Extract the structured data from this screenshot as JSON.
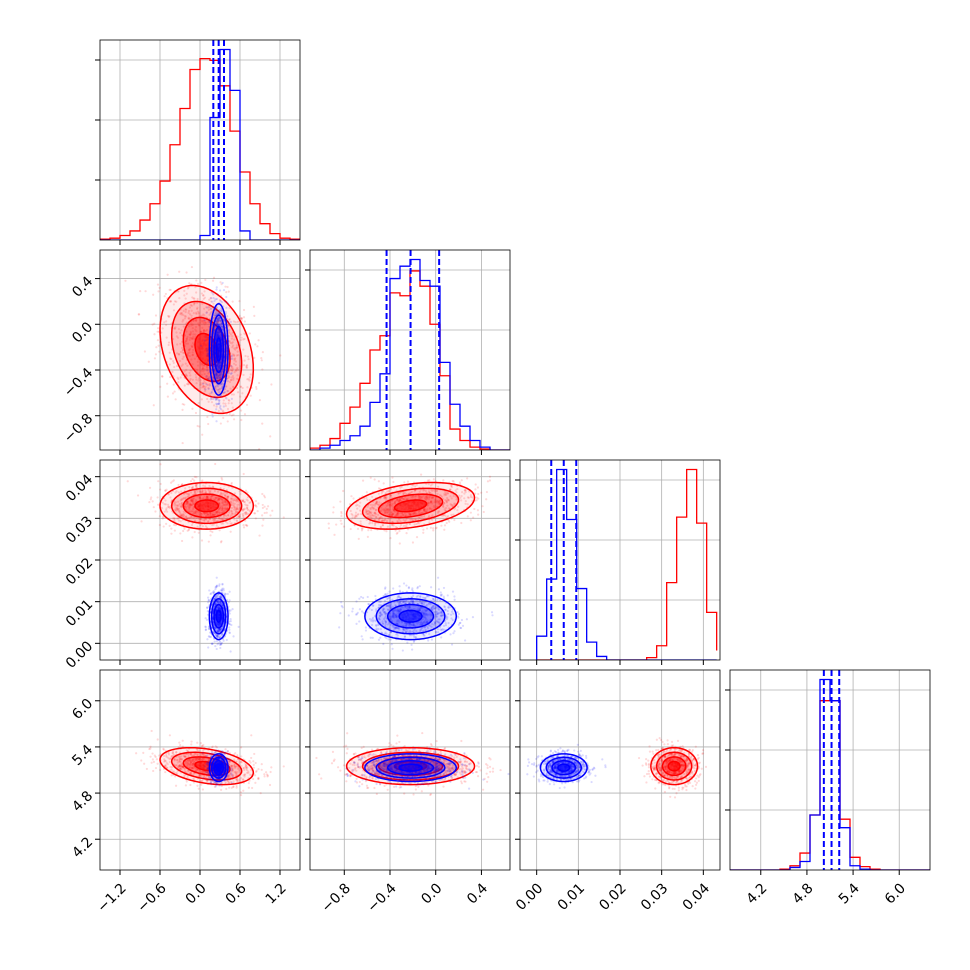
{
  "colors": {
    "red": "#ff0000",
    "blue": "#0000ff",
    "grid": "#b0b0b0"
  },
  "chart_data": {
    "type": "corner",
    "grid": true,
    "parameters": [
      {
        "range": [
          -1.5,
          1.5
        ],
        "ticks": [
          -1.2,
          -0.6,
          0.0,
          0.6,
          1.2
        ],
        "tick_labels": [
          "−1.2",
          "−0.6",
          "0.0",
          "0.6",
          "1.2"
        ]
      },
      {
        "range": [
          -1.1,
          0.65
        ],
        "ticks": [
          -0.8,
          -0.4,
          0.0,
          0.4
        ],
        "tick_labels": [
          "−0.8",
          "−0.4",
          "0.0",
          "0.4"
        ]
      },
      {
        "range": [
          -0.004,
          0.044
        ],
        "ticks": [
          0.0,
          0.01,
          0.02,
          0.03,
          0.04
        ],
        "tick_labels": [
          "0.00",
          "0.01",
          "0.02",
          "0.03",
          "0.04"
        ]
      },
      {
        "range": [
          3.8,
          6.4
        ],
        "ticks": [
          4.2,
          4.8,
          5.4,
          6.0
        ],
        "tick_labels": [
          "4.2",
          "4.8",
          "5.4",
          "6.0"
        ]
      }
    ],
    "series": [
      {
        "color": "#ff0000",
        "means": [
          0.1,
          -0.22,
          0.033,
          5.15
        ],
        "sigmas": [
          0.35,
          0.28,
          0.0028,
          0.12
        ],
        "correlations": {
          "0-1": -0.3,
          "0-2": 0.0,
          "0-3": -0.35,
          "1-2": 0.35,
          "1-3": 0.0,
          "2-3": 0.0
        },
        "quantiles": null,
        "histograms": [
          {
            "edges": [
              -1.5,
              -1.35,
              -1.2,
              -1.05,
              -0.9,
              -0.75,
              -0.6,
              -0.45,
              -0.3,
              -0.15,
              0.0,
              0.15,
              0.3,
              0.45,
              0.6,
              0.75,
              0.9,
              1.05,
              1.2,
              1.35,
              1.5
            ],
            "counts": [
              1,
              2,
              5,
              10,
              22,
              40,
              65,
              105,
              145,
              188,
              200,
              198,
              170,
              120,
              75,
              40,
              18,
              7,
              2,
              1
            ]
          },
          {
            "edges": [
              -1.1,
              -1.0125,
              -0.925,
              -0.8375,
              -0.75,
              -0.6625,
              -0.575,
              -0.4875,
              -0.4,
              -0.3125,
              -0.225,
              -0.1375,
              -0.05,
              0.0375,
              0.125,
              0.2125,
              0.3,
              0.3875,
              0.475,
              0.5625,
              0.65
            ],
            "counts": [
              2,
              5,
              12,
              28,
              45,
              70,
              105,
              120,
              165,
              162,
              188,
              172,
              132,
              78,
              22,
              10,
              3,
              1,
              0,
              0
            ]
          },
          {
            "edges": [
              0.0,
              0.0024,
              0.0048,
              0.0072,
              0.0096,
              0.012,
              0.0144,
              0.0168,
              0.0192,
              0.0216,
              0.024,
              0.0264,
              0.0288,
              0.0312,
              0.0336,
              0.036,
              0.0384,
              0.0408,
              0.0432
            ],
            "counts": [
              0,
              0,
              0,
              0,
              0,
              0,
              0,
              0,
              0,
              0,
              0,
              2,
              12,
              65,
              120,
              160,
              115,
              40,
              8
            ]
          },
          {
            "edges": [
              3.8,
              3.93,
              4.06,
              4.19,
              4.32,
              4.45,
              4.58,
              4.71,
              4.84,
              4.97,
              5.1,
              5.23,
              5.36,
              5.49,
              5.62,
              5.75,
              5.88,
              6.01,
              6.14,
              6.27,
              6.4
            ],
            "counts": [
              0,
              0,
              0,
              0,
              0,
              1,
              5,
              20,
              65,
              200,
              200,
              60,
              15,
              4,
              1,
              0,
              0,
              0,
              0,
              0
            ]
          }
        ]
      },
      {
        "color": "#0000ff",
        "means": [
          0.28,
          -0.22,
          0.0065,
          5.13
        ],
        "sigmas": [
          0.07,
          0.2,
          0.0028,
          0.09
        ],
        "correlations": {
          "0-1": 0.0,
          "0-2": 0.0,
          "0-3": 0.0,
          "1-2": 0.0,
          "1-3": 0.0,
          "2-3": 0.0
        },
        "quantiles": [
          [
            0.2,
            0.28,
            0.36
          ],
          [
            -0.43,
            -0.22,
            0.03
          ],
          [
            0.0035,
            0.0065,
            0.0095
          ],
          [
            5.02,
            5.12,
            5.22
          ]
        ],
        "histograms": [
          {
            "edges": [
              -1.5,
              -1.35,
              -1.2,
              -1.05,
              -0.9,
              -0.75,
              -0.6,
              -0.45,
              -0.3,
              -0.15,
              0.0,
              0.15,
              0.3,
              0.45,
              0.6,
              0.75,
              0.9,
              1.05,
              1.2,
              1.35,
              1.5
            ],
            "counts": [
              0,
              0,
              0,
              0,
              0,
              0,
              0,
              0,
              0,
              0,
              5,
              135,
              210,
              165,
              10,
              0,
              0,
              0,
              0,
              0
            ]
          },
          {
            "edges": [
              -1.1,
              -1.0125,
              -0.925,
              -0.8375,
              -0.75,
              -0.6625,
              -0.575,
              -0.4875,
              -0.4,
              -0.3125,
              -0.225,
              -0.1375,
              -0.05,
              0.0375,
              0.125,
              0.2125,
              0.3,
              0.3875,
              0.475,
              0.5625,
              0.65
            ],
            "counts": [
              0,
              2,
              5,
              10,
              15,
              25,
              50,
              80,
              180,
              193,
              200,
              178,
              172,
              92,
              48,
              25,
              10,
              3,
              0,
              0
            ]
          },
          {
            "edges": [
              0.0,
              0.0024,
              0.0048,
              0.0072,
              0.0096,
              0.012,
              0.0144,
              0.0168,
              0.0192,
              0.0216,
              0.024,
              0.0264,
              0.0288,
              0.0312,
              0.0336,
              0.036,
              0.0384,
              0.0408,
              0.0432
            ],
            "counts": [
              20,
              68,
              160,
              118,
              60,
              15,
              3,
              0,
              0,
              0,
              0,
              0,
              0,
              0,
              0,
              0,
              0,
              0,
              0
            ]
          },
          {
            "edges": [
              3.8,
              3.93,
              4.06,
              4.19,
              4.32,
              4.45,
              4.58,
              4.71,
              4.84,
              4.97,
              5.1,
              5.23,
              5.36,
              5.49,
              5.62,
              5.75,
              5.88,
              6.01,
              6.14,
              6.27,
              6.4
            ],
            "counts": [
              0,
              0,
              0,
              0,
              0,
              0,
              3,
              10,
              65,
              225,
              200,
              50,
              5,
              1,
              0,
              0,
              0,
              0,
              0,
              0
            ]
          }
        ]
      }
    ]
  }
}
